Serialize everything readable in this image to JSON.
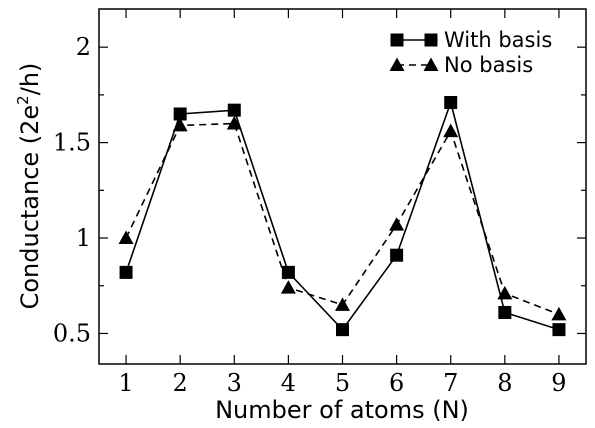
{
  "chart_data": {
    "type": "line",
    "xlabel": "Number of atoms (N)",
    "ylabel": {
      "main": "Conductance (2e",
      "sup": "2",
      "tail": "/h)"
    },
    "x": [
      1,
      2,
      3,
      4,
      5,
      6,
      7,
      8,
      9
    ],
    "xlim": [
      0.5,
      9.5
    ],
    "ylim": [
      0.34,
      2.2
    ],
    "xticks": [
      1,
      2,
      3,
      4,
      5,
      6,
      7,
      8,
      9
    ],
    "yticks": [
      0.5,
      1,
      1.5,
      2
    ],
    "ytick_labels": [
      "0.5",
      "1",
      "1.5",
      "2"
    ],
    "minor_yticks": [
      0.75,
      1.25,
      1.75
    ],
    "grid": false,
    "legend_position": "top-right",
    "series": [
      {
        "name": "With basis",
        "marker": "square",
        "dash": "solid",
        "values": [
          0.82,
          1.65,
          1.67,
          0.82,
          0.52,
          0.91,
          1.71,
          0.61,
          0.52
        ]
      },
      {
        "name": "No basis",
        "marker": "triangle",
        "dash": "dashed",
        "values": [
          1.0,
          1.59,
          1.6,
          0.74,
          0.65,
          1.07,
          1.56,
          0.71,
          0.6
        ]
      }
    ]
  }
}
